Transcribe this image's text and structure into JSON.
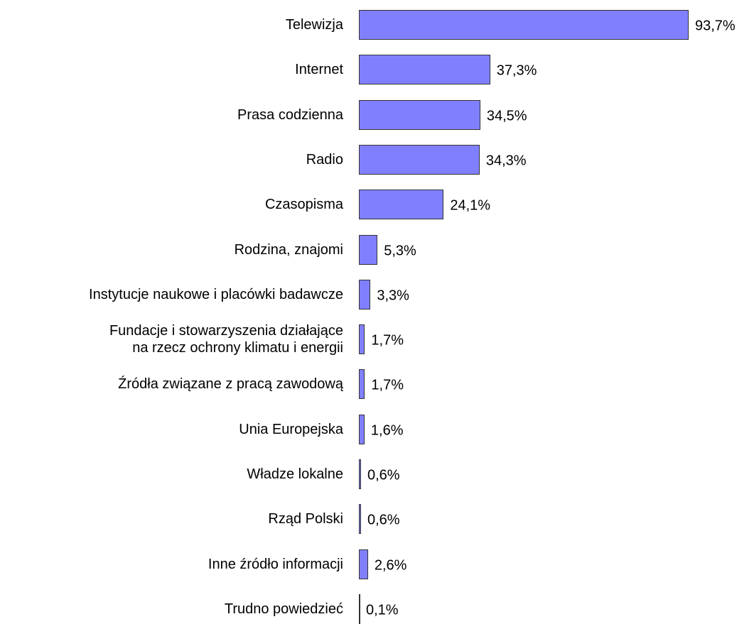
{
  "chart_data": {
    "type": "bar",
    "orientation": "horizontal",
    "color": "#8080ff",
    "categories": [
      "Telewizja",
      "Internet",
      "Prasa codzienna",
      "Radio",
      "Czasopisma",
      "Rodzina, znajomi",
      "Instytucje naukowe i placówki badawcze",
      "Fundacje i stowarzyszenia  działające\nna rzecz ochrony klimatu i energii",
      "Źródła związane z pracą zawodową",
      "Unia Europejska",
      "Władze lokalne",
      "Rząd Polski",
      "Inne źródło informacji",
      "Trudno powiedzieć"
    ],
    "values": [
      93.7,
      37.3,
      34.5,
      34.3,
      24.1,
      5.3,
      3.3,
      1.7,
      1.7,
      1.6,
      0.6,
      0.6,
      2.6,
      0.1
    ],
    "value_labels": [
      "93,7%",
      "37,3%",
      "34,5%",
      "34,3%",
      "24,1%",
      "5,3%",
      "3,3%",
      "1,7%",
      "1,7%",
      "1,6%",
      "0,6%",
      "0,6%",
      "2,6%",
      "0,1%"
    ]
  }
}
